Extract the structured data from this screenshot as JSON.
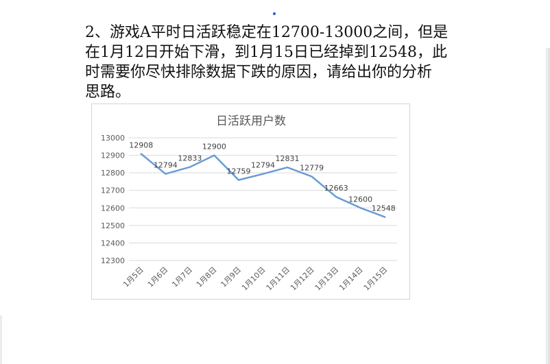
{
  "question": {
    "line1": "2、游戏A平时日活跃稳定在12700-13000之间，但是",
    "line2": "在1月12日开始下滑，到1月15日已经掉到12548，此",
    "line3": "时需要你尽快排除数据下跌的原因，请给出你的分析",
    "line4": "思路。"
  },
  "chart_data": {
    "type": "line",
    "title": "日活跃用户数",
    "categories": [
      "1月5日",
      "1月6日",
      "1月7日",
      "1月8日",
      "1月9日",
      "1月10日",
      "1月11日",
      "1月12日",
      "1月13日",
      "1月14日",
      "1月15日"
    ],
    "series": [
      {
        "values": [
          12908,
          12794,
          12833,
          12900,
          12759,
          12794,
          12831,
          12779,
          12663,
          12600,
          12548
        ]
      }
    ],
    "ylim": [
      12300,
      13000
    ],
    "yticks": [
      13000,
      12900,
      12800,
      12700,
      12600,
      12500,
      12400,
      12300
    ],
    "grid": true,
    "data_labels": true,
    "line_color": "#6a9bd6",
    "grid_color": "#d9d9d9"
  }
}
